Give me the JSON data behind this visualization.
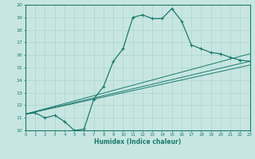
{
  "xlabel": "Humidex (Indice chaleur)",
  "bg_color": "#c8e6e1",
  "grid_color": "#b0d8d2",
  "line_color": "#1a7a6e",
  "xlim": [
    0,
    23
  ],
  "ylim": [
    10,
    20
  ],
  "xticks": [
    0,
    1,
    2,
    3,
    4,
    5,
    6,
    7,
    8,
    9,
    10,
    11,
    12,
    13,
    14,
    15,
    16,
    17,
    18,
    19,
    20,
    21,
    22,
    23
  ],
  "yticks": [
    10,
    11,
    12,
    13,
    14,
    15,
    16,
    17,
    18,
    19,
    20
  ],
  "curve1_x": [
    0,
    1,
    2,
    3,
    4,
    5,
    6,
    7,
    8,
    9,
    10,
    11,
    12,
    13,
    14,
    15,
    16,
    17,
    18,
    19,
    20,
    21,
    22,
    23
  ],
  "curve1_y": [
    11.3,
    11.4,
    11.0,
    11.2,
    10.7,
    10.0,
    10.1,
    12.5,
    13.5,
    15.5,
    16.5,
    19.0,
    19.2,
    18.9,
    18.9,
    19.7,
    18.7,
    16.8,
    16.5,
    16.2,
    16.1,
    15.8,
    15.6,
    15.5
  ],
  "regline1": [
    [
      0,
      23
    ],
    [
      11.3,
      15.5
    ]
  ],
  "regline2": [
    [
      0,
      23
    ],
    [
      11.3,
      16.1
    ]
  ],
  "regline3": [
    [
      0,
      23
    ],
    [
      11.3,
      15.2
    ]
  ]
}
